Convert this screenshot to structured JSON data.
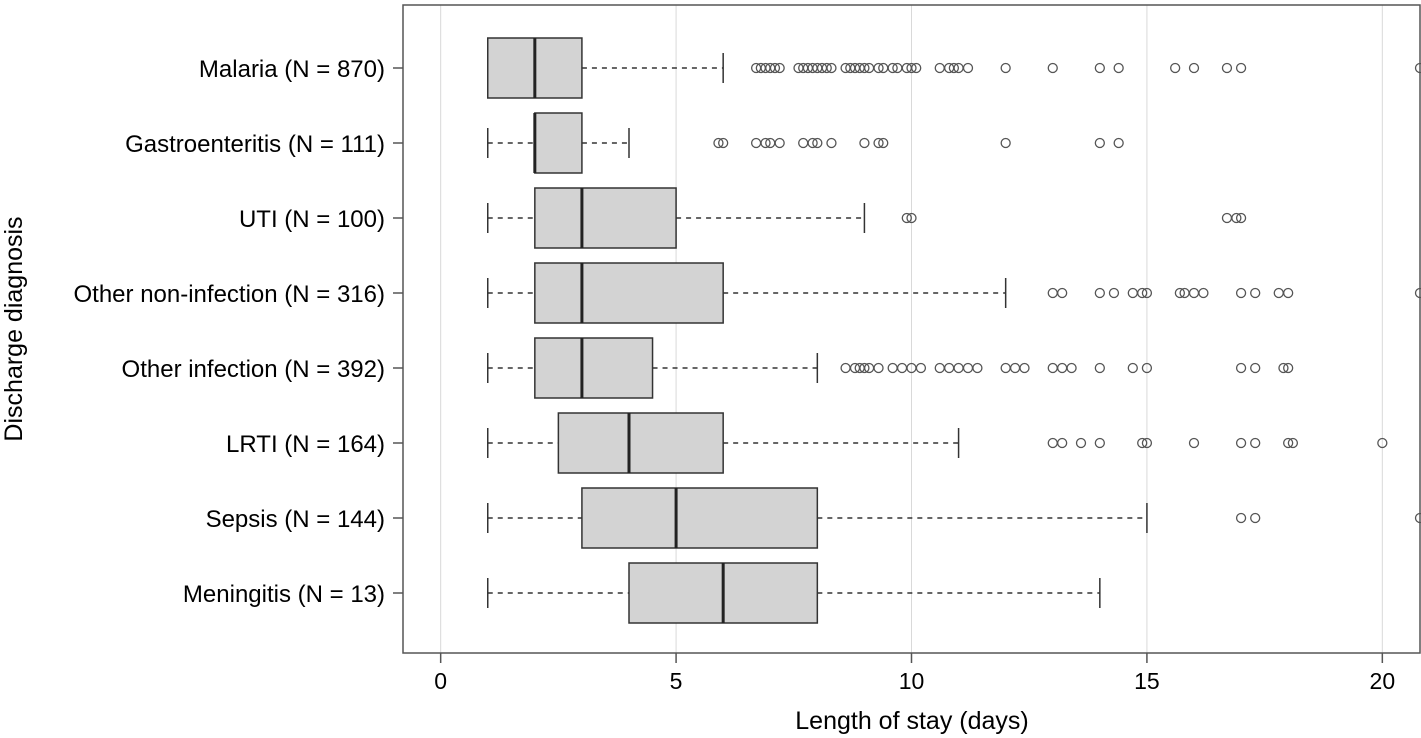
{
  "chart_data": {
    "type": "boxplot",
    "orientation": "horizontal",
    "xlabel": "Length of stay (days)",
    "ylabel": "Discharge diagnosis",
    "xlim": [
      -0.8,
      20.8
    ],
    "xticks": [
      0,
      5,
      10,
      15,
      20
    ],
    "grid": "vertical",
    "colors": {
      "box_fill": "#d3d3d3",
      "stroke": "#333333",
      "grid": "#d9d9d9",
      "outlier": "#555555"
    },
    "categories": [
      {
        "label": "Malaria (N = 870)",
        "whisker_low": 1,
        "q1": 1,
        "median": 2,
        "q3": 3,
        "whisker_high": 6,
        "outliers": [
          6.7,
          6.8,
          6.9,
          7,
          7.1,
          7.2,
          7.6,
          7.7,
          7.8,
          7.9,
          8,
          8.1,
          8.2,
          8.3,
          8.6,
          8.7,
          8.8,
          8.9,
          9,
          9.1,
          9.3,
          9.4,
          9.6,
          9.7,
          9.9,
          10,
          10.1,
          10.6,
          10.8,
          10.9,
          11,
          11.2,
          12,
          13,
          14,
          14.4,
          15.6,
          16,
          16.7,
          17,
          20.8
        ]
      },
      {
        "label": "Gastroenteritis (N = 111)",
        "whisker_low": 1,
        "q1": 2,
        "median": 2,
        "q3": 3,
        "whisker_high": 4,
        "outliers": [
          5.9,
          6,
          6.7,
          6.9,
          7,
          7.2,
          7.7,
          7.9,
          8,
          8.3,
          9,
          9.3,
          9.4,
          12,
          14,
          14.4
        ]
      },
      {
        "label": "UTI (N = 100)",
        "whisker_low": 1,
        "q1": 2,
        "median": 3,
        "q3": 5,
        "whisker_high": 9,
        "outliers": [
          9.9,
          10,
          16.7,
          16.9,
          17
        ]
      },
      {
        "label": "Other non-infection (N = 316)",
        "whisker_low": 1,
        "q1": 2,
        "median": 3,
        "q3": 6,
        "whisker_high": 12,
        "outliers": [
          13,
          13.2,
          14,
          14.3,
          14.7,
          14.9,
          15,
          15.7,
          15.8,
          16,
          16.2,
          17,
          17.3,
          17.8,
          18,
          20.8
        ]
      },
      {
        "label": "Other infection (N = 392)",
        "whisker_low": 1,
        "q1": 2,
        "median": 3,
        "q3": 4.5,
        "whisker_high": 8,
        "outliers": [
          8.6,
          8.8,
          8.9,
          9,
          9.1,
          9.3,
          9.6,
          9.8,
          10,
          10.2,
          10.6,
          10.8,
          11,
          11.2,
          11.4,
          12,
          12.2,
          12.4,
          13,
          13.2,
          13.4,
          14,
          14.7,
          15,
          17,
          17.3,
          17.9,
          18
        ]
      },
      {
        "label": "LRTI (N = 164)",
        "whisker_low": 1,
        "q1": 2.5,
        "median": 4,
        "q3": 6,
        "whisker_high": 11,
        "outliers": [
          13,
          13.2,
          13.6,
          14,
          14.9,
          15,
          16,
          17,
          17.3,
          18,
          18.1,
          20
        ]
      },
      {
        "label": "Sepsis (N = 144)",
        "whisker_low": 1,
        "q1": 3,
        "median": 5,
        "q3": 8,
        "whisker_high": 15,
        "outliers": [
          17,
          17.3,
          20.8
        ]
      },
      {
        "label": "Meningitis (N = 13)",
        "whisker_low": 1,
        "q1": 4,
        "median": 6,
        "q3": 8,
        "whisker_high": 14,
        "outliers": []
      }
    ]
  }
}
